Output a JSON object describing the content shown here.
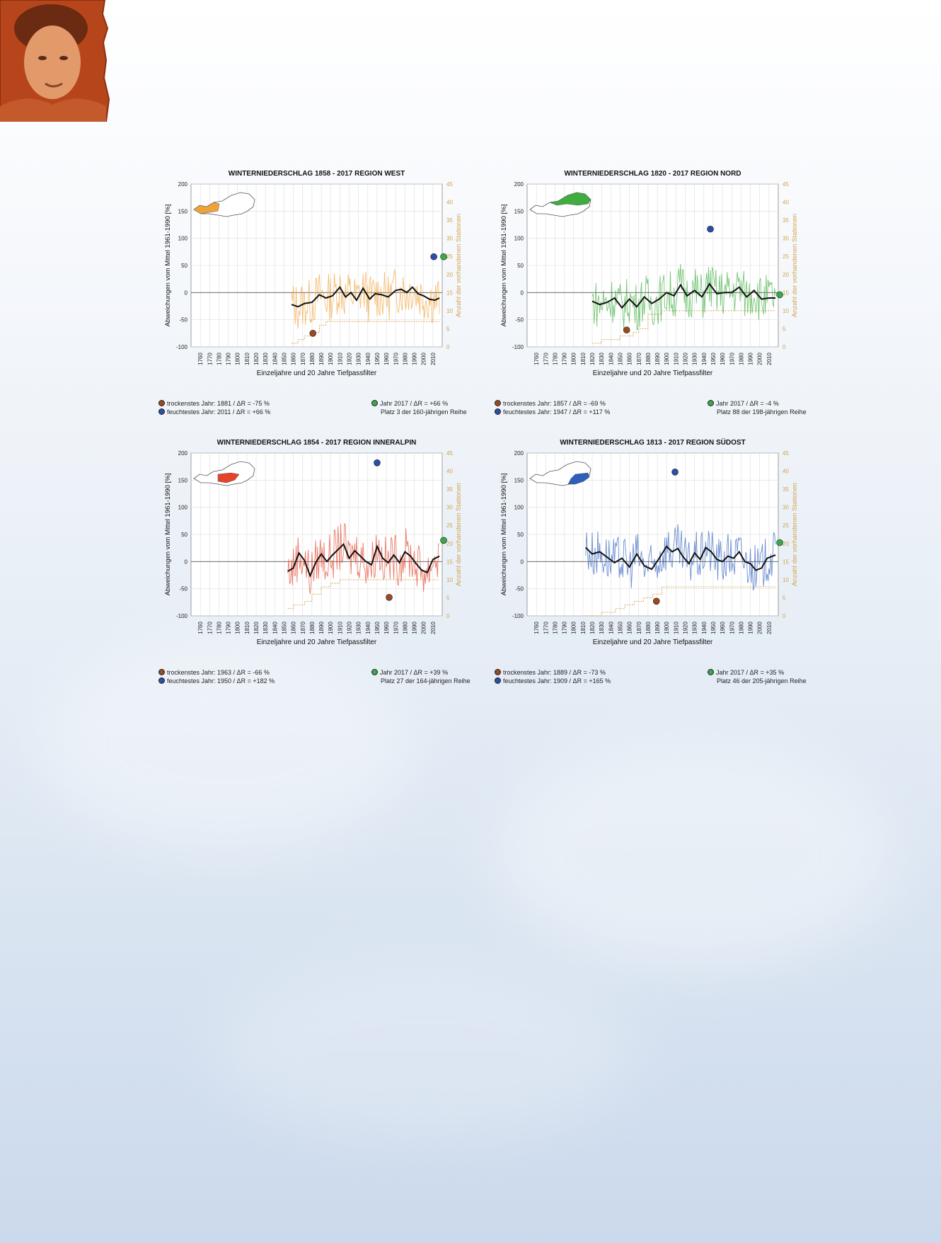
{
  "colors": {
    "west": "#f0a23a",
    "nord": "#3fae3f",
    "inneralpin": "#e6432b",
    "suedost": "#2e5fbd",
    "dry": "#9b4a1f",
    "wet": "#2b4fa8",
    "current": "#3aa74b",
    "stations": "#d0a44a",
    "portrait_bg": "#b7451c"
  },
  "chart_data": [
    {
      "type": "line",
      "title": "WINTERNIEDERSCHLAG  1858 - 2017  REGION WEST",
      "region_color_key": "west",
      "xlabel": "Einzeljahre und 20 Jahre Tiefpassfilter",
      "ylabel": "Abweichungen vom Mittel 1961-1990 [%]",
      "y2label": "Anzahl der vorhandenen Stationen",
      "xlim": [
        1750,
        2020
      ],
      "ylim": [
        -100,
        200
      ],
      "y2lim": [
        0,
        45
      ],
      "xticks": [
        "1760",
        "1770",
        "1780",
        "1790",
        "1800",
        "1810",
        "1820",
        "1830",
        "1840",
        "1850",
        "1860",
        "1870",
        "1880",
        "1890",
        "1900",
        "1910",
        "1920",
        "1930",
        "1940",
        "1950",
        "1960",
        "1970",
        "1980",
        "1990",
        "2000",
        "2010"
      ],
      "yticks": [
        "-100",
        "-50",
        "0",
        "50",
        "100",
        "150",
        "200"
      ],
      "y2ticks": [
        "0",
        "5",
        "10",
        "15",
        "20",
        "25",
        "30",
        "35",
        "40",
        "45"
      ],
      "start_year": 1858,
      "end_year": 2017,
      "smoothed": [
        [
          1858,
          -22
        ],
        [
          1865,
          -26
        ],
        [
          1872,
          -20
        ],
        [
          1880,
          -18
        ],
        [
          1888,
          -4
        ],
        [
          1895,
          -10
        ],
        [
          1902,
          -6
        ],
        [
          1910,
          10
        ],
        [
          1916,
          -8
        ],
        [
          1922,
          0
        ],
        [
          1928,
          -14
        ],
        [
          1935,
          8
        ],
        [
          1942,
          -12
        ],
        [
          1948,
          -2
        ],
        [
          1955,
          -4
        ],
        [
          1962,
          -8
        ],
        [
          1970,
          4
        ],
        [
          1976,
          6
        ],
        [
          1982,
          0
        ],
        [
          1988,
          10
        ],
        [
          1994,
          -2
        ],
        [
          2000,
          -6
        ],
        [
          2006,
          -12
        ],
        [
          2012,
          -14
        ],
        [
          2017,
          -10
        ]
      ],
      "stations": [
        [
          1858,
          1
        ],
        [
          1865,
          2
        ],
        [
          1872,
          3
        ],
        [
          1880,
          4
        ],
        [
          1888,
          6
        ],
        [
          1895,
          7
        ],
        [
          1902,
          7
        ],
        [
          1910,
          7
        ],
        [
          1920,
          7
        ],
        [
          1930,
          7
        ],
        [
          1940,
          7
        ],
        [
          1950,
          7
        ],
        [
          1960,
          7
        ],
        [
          1970,
          7
        ],
        [
          1980,
          7
        ],
        [
          1990,
          7
        ],
        [
          2000,
          7
        ],
        [
          2010,
          7
        ],
        [
          2017,
          7
        ]
      ],
      "dry": {
        "year": 1881,
        "value": -75
      },
      "wet": {
        "year": 2011,
        "value": 66
      },
      "current": {
        "year": 2017,
        "value": 66
      },
      "legend": {
        "dry": "trockenstes Jahr: 1881 / ΔR = -75 %",
        "wet": "feuchtestes Jahr: 2011 / ΔR = +66 %",
        "current": "Jahr 2017 / ΔR = +66 %",
        "rank": "Platz 3 der 160-jährigen Reihe"
      }
    },
    {
      "type": "line",
      "title": "WINTERNIEDERSCHLAG  1820 - 2017  REGION NORD",
      "region_color_key": "nord",
      "xlabel": "Einzeljahre und 20 Jahre Tiefpassfilter",
      "ylabel": "Abweichungen vom Mittel 1961-1990 [%]",
      "y2label": "Anzahl der vorhandenen Stationen",
      "xlim": [
        1750,
        2020
      ],
      "ylim": [
        -100,
        200
      ],
      "y2lim": [
        0,
        45
      ],
      "xticks": [
        "1760",
        "1770",
        "1780",
        "1790",
        "1800",
        "1810",
        "1820",
        "1830",
        "1840",
        "1850",
        "1860",
        "1870",
        "1880",
        "1890",
        "1900",
        "1910",
        "1920",
        "1930",
        "1940",
        "1950",
        "1960",
        "1970",
        "1980",
        "1990",
        "2000",
        "2010"
      ],
      "yticks": [
        "-100",
        "-50",
        "0",
        "50",
        "100",
        "150",
        "200"
      ],
      "y2ticks": [
        "0",
        "5",
        "10",
        "15",
        "20",
        "25",
        "30",
        "35",
        "40",
        "45"
      ],
      "start_year": 1820,
      "end_year": 2017,
      "smoothed": [
        [
          1820,
          -16
        ],
        [
          1828,
          -22
        ],
        [
          1836,
          -18
        ],
        [
          1844,
          -10
        ],
        [
          1852,
          -28
        ],
        [
          1860,
          -12
        ],
        [
          1868,
          -26
        ],
        [
          1876,
          -8
        ],
        [
          1884,
          -20
        ],
        [
          1892,
          -12
        ],
        [
          1900,
          0
        ],
        [
          1908,
          -6
        ],
        [
          1915,
          14
        ],
        [
          1922,
          -6
        ],
        [
          1930,
          4
        ],
        [
          1938,
          -8
        ],
        [
          1946,
          16
        ],
        [
          1954,
          -2
        ],
        [
          1962,
          0
        ],
        [
          1970,
          0
        ],
        [
          1978,
          10
        ],
        [
          1986,
          -8
        ],
        [
          1994,
          4
        ],
        [
          2002,
          -12
        ],
        [
          2010,
          -10
        ],
        [
          2017,
          -10
        ]
      ],
      "stations": [
        [
          1820,
          1
        ],
        [
          1830,
          2
        ],
        [
          1840,
          2
        ],
        [
          1850,
          3
        ],
        [
          1858,
          3
        ],
        [
          1864,
          4
        ],
        [
          1870,
          5
        ],
        [
          1880,
          9
        ],
        [
          1895,
          10
        ],
        [
          1910,
          10
        ],
        [
          1930,
          10
        ],
        [
          1950,
          10
        ],
        [
          1970,
          10
        ],
        [
          1990,
          10
        ],
        [
          2017,
          10
        ]
      ],
      "dry": {
        "year": 1857,
        "value": -69
      },
      "wet": {
        "year": 1947,
        "value": 117
      },
      "current": {
        "year": 2017,
        "value": -4
      },
      "legend": {
        "dry": "trockenstes Jahr: 1857 / ΔR = -69 %",
        "wet": "feuchtestes Jahr: 1947 / ΔR = +117 %",
        "current": "Jahr 2017 / ΔR = -4 %",
        "rank": "Platz 88 der 198-jährigen Reihe"
      }
    },
    {
      "type": "line",
      "title": "WINTERNIEDERSCHLAG  1854 - 2017  REGION INNERALPIN",
      "region_color_key": "inneralpin",
      "xlabel": "Einzeljahre und 20 Jahre Tiefpassfilter",
      "ylabel": "Abweichungen vom Mittel 1961-1990 [%]",
      "y2label": "Anzahl der vorhandenen Stationen",
      "xlim": [
        1750,
        2020
      ],
      "ylim": [
        -100,
        200
      ],
      "y2lim": [
        0,
        45
      ],
      "xticks": [
        "1760",
        "1770",
        "1780",
        "1790",
        "1800",
        "1810",
        "1820",
        "1830",
        "1840",
        "1850",
        "1860",
        "1870",
        "1880",
        "1890",
        "1900",
        "1910",
        "1920",
        "1930",
        "1940",
        "1950",
        "1960",
        "1970",
        "1980",
        "1990",
        "2000",
        "2010"
      ],
      "yticks": [
        "-100",
        "-50",
        "0",
        "50",
        "100",
        "150",
        "200"
      ],
      "y2ticks": [
        "0",
        "5",
        "10",
        "15",
        "20",
        "25",
        "30",
        "35",
        "40",
        "45"
      ],
      "start_year": 1854,
      "end_year": 2017,
      "smoothed": [
        [
          1854,
          -18
        ],
        [
          1860,
          -12
        ],
        [
          1866,
          16
        ],
        [
          1872,
          2
        ],
        [
          1878,
          -26
        ],
        [
          1884,
          -2
        ],
        [
          1890,
          14
        ],
        [
          1896,
          0
        ],
        [
          1902,
          12
        ],
        [
          1908,
          22
        ],
        [
          1914,
          32
        ],
        [
          1920,
          6
        ],
        [
          1926,
          20
        ],
        [
          1932,
          10
        ],
        [
          1938,
          0
        ],
        [
          1944,
          -6
        ],
        [
          1950,
          28
        ],
        [
          1956,
          6
        ],
        [
          1962,
          -2
        ],
        [
          1968,
          12
        ],
        [
          1974,
          -2
        ],
        [
          1980,
          18
        ],
        [
          1986,
          10
        ],
        [
          1992,
          -4
        ],
        [
          1998,
          -16
        ],
        [
          2004,
          -20
        ],
        [
          2010,
          4
        ],
        [
          2017,
          10
        ]
      ],
      "stations": [
        [
          1854,
          2
        ],
        [
          1860,
          3
        ],
        [
          1866,
          3
        ],
        [
          1872,
          4
        ],
        [
          1880,
          6
        ],
        [
          1890,
          8
        ],
        [
          1900,
          9
        ],
        [
          1910,
          10
        ],
        [
          1930,
          10
        ],
        [
          1950,
          10
        ],
        [
          1970,
          10
        ],
        [
          1990,
          10
        ],
        [
          2017,
          10
        ]
      ],
      "dry": {
        "year": 1963,
        "value": -66
      },
      "wet": {
        "year": 1950,
        "value": 182
      },
      "current": {
        "year": 2017,
        "value": 39
      },
      "legend": {
        "dry": "trockenstes Jahr: 1963 / ΔR = -66 %",
        "wet": "feuchtestes Jahr: 1950 / ΔR = +182 %",
        "current": "Jahr 2017 / ΔR = +39 %",
        "rank": "Platz 27 der 164-jährigen Reihe"
      }
    },
    {
      "type": "line",
      "title": "WINTERNIEDERSCHLAG  1813 - 2017  REGION SÜDOST",
      "region_color_key": "suedost",
      "xlabel": "Einzeljahre und 20 Jahre Tiefpassfilter",
      "ylabel": "Abweichungen vom Mittel 1961-1990 [%]",
      "y2label": "Anzahl der vorhandenen Stationen",
      "xlim": [
        1750,
        2020
      ],
      "ylim": [
        -100,
        200
      ],
      "y2lim": [
        0,
        45
      ],
      "xticks": [
        "1760",
        "1770",
        "1780",
        "1790",
        "1800",
        "1810",
        "1820",
        "1830",
        "1840",
        "1850",
        "1860",
        "1870",
        "1880",
        "1890",
        "1900",
        "1910",
        "1920",
        "1930",
        "1940",
        "1950",
        "1960",
        "1970",
        "1980",
        "1990",
        "2000",
        "2010"
      ],
      "yticks": [
        "-100",
        "-50",
        "0",
        "50",
        "100",
        "150",
        "200"
      ],
      "y2ticks": [
        "0",
        "5",
        "10",
        "15",
        "20",
        "25",
        "30",
        "35",
        "40",
        "45"
      ],
      "start_year": 1813,
      "end_year": 2017,
      "smoothed": [
        [
          1813,
          26
        ],
        [
          1820,
          14
        ],
        [
          1828,
          18
        ],
        [
          1836,
          8
        ],
        [
          1844,
          -2
        ],
        [
          1852,
          6
        ],
        [
          1860,
          -10
        ],
        [
          1868,
          14
        ],
        [
          1876,
          -8
        ],
        [
          1884,
          -14
        ],
        [
          1892,
          6
        ],
        [
          1900,
          28
        ],
        [
          1906,
          18
        ],
        [
          1912,
          24
        ],
        [
          1918,
          8
        ],
        [
          1924,
          -4
        ],
        [
          1930,
          16
        ],
        [
          1936,
          4
        ],
        [
          1942,
          26
        ],
        [
          1948,
          18
        ],
        [
          1954,
          4
        ],
        [
          1960,
          0
        ],
        [
          1966,
          10
        ],
        [
          1972,
          6
        ],
        [
          1978,
          18
        ],
        [
          1984,
          0
        ],
        [
          1990,
          -4
        ],
        [
          1996,
          -16
        ],
        [
          2002,
          -12
        ],
        [
          2008,
          6
        ],
        [
          2017,
          12
        ]
      ],
      "stations": [
        [
          1813,
          0
        ],
        [
          1830,
          1
        ],
        [
          1845,
          2
        ],
        [
          1855,
          3
        ],
        [
          1865,
          4
        ],
        [
          1875,
          5
        ],
        [
          1885,
          6
        ],
        [
          1895,
          8
        ],
        [
          1905,
          8
        ],
        [
          1930,
          8
        ],
        [
          1960,
          8
        ],
        [
          1990,
          8
        ],
        [
          2017,
          8
        ]
      ],
      "dry": {
        "year": 1889,
        "value": -73
      },
      "wet": {
        "year": 1909,
        "value": 165
      },
      "current": {
        "year": 2017,
        "value": 35
      },
      "legend": {
        "dry": "trockenstes Jahr: 1889 / ΔR = -73 %",
        "wet": "feuchtestes Jahr: 1909 / ΔR = +165 %",
        "current": "Jahr 2017 / ΔR = +35 %",
        "rank": "Platz 46 der 205-jährigen Reihe"
      }
    }
  ]
}
